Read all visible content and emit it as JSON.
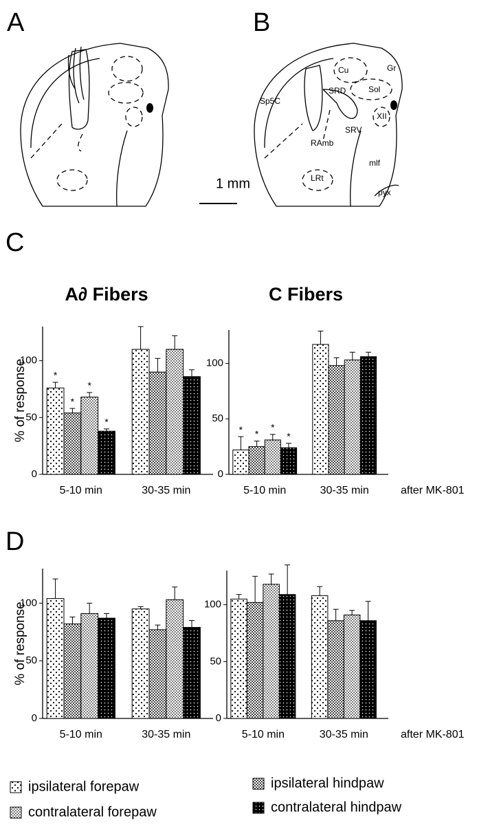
{
  "panels": {
    "A": "A",
    "B": "B",
    "C": "C",
    "D": "D"
  },
  "scale_bar": "1 mm",
  "diagram_labels": [
    "Cu",
    "Gr",
    "Sp5C",
    "SRD",
    "Sol",
    "XII",
    "SRV",
    "RAmb",
    "mlf",
    "LRt",
    "pyx"
  ],
  "chart_data": [
    {
      "type": "bar",
      "title": "A∂ Fibers",
      "ylabel": "% of response",
      "categories": [
        "5-10 min",
        "30-35 min"
      ],
      "ylim": [
        0,
        130
      ],
      "yticks": [
        0,
        50,
        100
      ],
      "series": [
        {
          "name": "ipsilateral forepaw",
          "pattern": "sparse-dots",
          "values": [
            76,
            110
          ],
          "errors": [
            5,
            20
          ],
          "significance": [
            "*",
            null
          ]
        },
        {
          "name": "ipsilateral hindpaw",
          "pattern": "crosshatch",
          "values": [
            54,
            90
          ],
          "errors": [
            4,
            12
          ],
          "significance": [
            "*",
            null
          ]
        },
        {
          "name": "contralateral forepaw",
          "pattern": "dense-dots",
          "values": [
            68,
            110
          ],
          "errors": [
            4,
            12
          ],
          "significance": [
            "*",
            null
          ]
        },
        {
          "name": "contralateral hindpaw",
          "pattern": "black-dots",
          "values": [
            38,
            86
          ],
          "errors": [
            2,
            6
          ],
          "significance": [
            "*",
            null
          ]
        }
      ]
    },
    {
      "type": "bar",
      "title": "C Fibers",
      "note": "after MK-801",
      "categories": [
        "5-10 min",
        "30-35 min"
      ],
      "ylim": [
        0,
        130
      ],
      "yticks": [
        0,
        50,
        100
      ],
      "series": [
        {
          "values": [
            22,
            117
          ],
          "errors": [
            12,
            12
          ],
          "significance": [
            "*",
            null
          ]
        },
        {
          "values": [
            25,
            98
          ],
          "errors": [
            5,
            7
          ],
          "significance": [
            "*",
            null
          ]
        },
        {
          "values": [
            31,
            103
          ],
          "errors": [
            5,
            7
          ],
          "significance": [
            "*",
            null
          ]
        },
        {
          "values": [
            24,
            106
          ],
          "errors": [
            4,
            4
          ],
          "significance": [
            "*",
            null
          ]
        }
      ]
    },
    {
      "type": "bar",
      "ylabel": "% of response",
      "categories": [
        "5-10 min",
        "30-35 min"
      ],
      "ylim": [
        0,
        130
      ],
      "yticks": [
        0,
        50,
        100
      ],
      "series": [
        {
          "values": [
            104,
            95
          ],
          "errors": [
            17,
            2
          ]
        },
        {
          "values": [
            82,
            77
          ],
          "errors": [
            6,
            4
          ]
        },
        {
          "values": [
            91,
            103
          ],
          "errors": [
            9,
            11
          ]
        },
        {
          "values": [
            87,
            79
          ],
          "errors": [
            4,
            6
          ]
        }
      ]
    },
    {
      "type": "bar",
      "note": "after MK-801",
      "categories": [
        "5-10 min",
        "30-35 min"
      ],
      "ylim": [
        0,
        130
      ],
      "yticks": [
        0,
        50,
        100
      ],
      "series": [
        {
          "values": [
            105,
            108
          ],
          "errors": [
            4,
            8
          ]
        },
        {
          "values": [
            102,
            86
          ],
          "errors": [
            23,
            10
          ]
        },
        {
          "values": [
            118,
            91
          ],
          "errors": [
            9,
            4
          ]
        },
        {
          "values": [
            109,
            86
          ],
          "errors": [
            26,
            17
          ]
        }
      ]
    }
  ]
}
